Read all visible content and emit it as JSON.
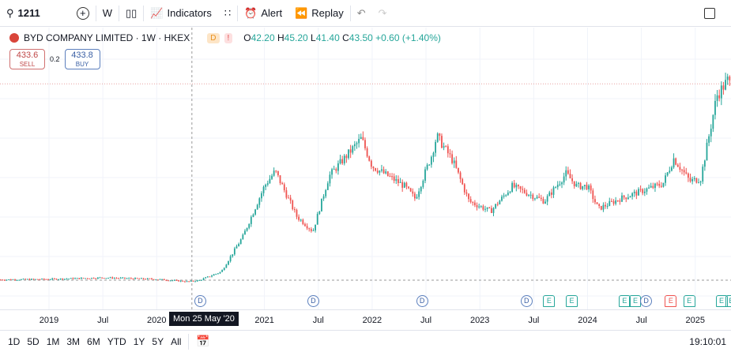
{
  "toolbar": {
    "symbol": "1211",
    "interval": "W",
    "indicators": "Indicators",
    "alert": "Alert",
    "replay": "Replay"
  },
  "legend": {
    "title": "BYD COMPANY LIMITED · 1W · HKEX",
    "badge_d": "D",
    "badge_warn": "!",
    "o_label": "O",
    "o": "42.20",
    "h_label": "H",
    "h": "45.20",
    "l_label": "L",
    "l": "41.40",
    "c_label": "C",
    "c": "43.50",
    "change": "+0.60 (+1.40%)"
  },
  "trade": {
    "sell_price": "433.6",
    "sell_label": "SELL",
    "spread": "0.2",
    "buy_price": "433.8",
    "buy_label": "BUY"
  },
  "crosshair_label": "Mon 25 May '20",
  "ranges": [
    "1D",
    "5D",
    "1M",
    "3M",
    "6M",
    "YTD",
    "1Y",
    "5Y",
    "All"
  ],
  "clock": "19:10:01",
  "colors": {
    "up": "#26a69a",
    "down": "#ef5350"
  },
  "chart_data": {
    "type": "candlestick",
    "x_ticks": [
      {
        "label": "2019",
        "t": 2019.0
      },
      {
        "label": "Jul",
        "t": 2019.5
      },
      {
        "label": "2020",
        "t": 2020.0
      },
      {
        "label": "2021",
        "t": 2021.0
      },
      {
        "label": "Jul",
        "t": 2021.5
      },
      {
        "label": "2022",
        "t": 2022.0
      },
      {
        "label": "Jul",
        "t": 2022.5
      },
      {
        "label": "2023",
        "t": 2023.0
      },
      {
        "label": "Jul",
        "t": 2023.5
      },
      {
        "label": "2024",
        "t": 2024.0
      },
      {
        "label": "Jul",
        "t": 2024.5
      },
      {
        "label": "2025",
        "t": 2025.0
      }
    ],
    "price_path": [
      [
        2018.55,
        44
      ],
      [
        2019.0,
        45
      ],
      [
        2019.5,
        48
      ],
      [
        2020.0,
        45
      ],
      [
        2020.3,
        40
      ],
      [
        2020.4,
        43
      ],
      [
        2020.6,
        60
      ],
      [
        2020.8,
        130
      ],
      [
        2021.0,
        230
      ],
      [
        2021.1,
        260
      ],
      [
        2021.3,
        170
      ],
      [
        2021.45,
        140
      ],
      [
        2021.6,
        250
      ],
      [
        2021.8,
        300
      ],
      [
        2021.9,
        325
      ],
      [
        2022.0,
        270
      ],
      [
        2022.3,
        230
      ],
      [
        2022.4,
        205
      ],
      [
        2022.55,
        290
      ],
      [
        2022.6,
        330
      ],
      [
        2022.75,
        280
      ],
      [
        2022.9,
        200
      ],
      [
        2023.1,
        180
      ],
      [
        2023.3,
        230
      ],
      [
        2023.6,
        200
      ],
      [
        2023.8,
        255
      ],
      [
        2023.9,
        230
      ],
      [
        2024.0,
        230
      ],
      [
        2024.1,
        185
      ],
      [
        2024.3,
        205
      ],
      [
        2024.5,
        220
      ],
      [
        2024.7,
        235
      ],
      [
        2024.8,
        285
      ],
      [
        2024.95,
        240
      ],
      [
        2025.05,
        245
      ],
      [
        2025.2,
        410
      ],
      [
        2025.3,
        440
      ],
      [
        2025.35,
        425
      ]
    ],
    "last_price": 433.6,
    "events": [
      {
        "type": "D",
        "t": 2020.4
      },
      {
        "type": "D",
        "t": 2021.45
      },
      {
        "type": "D",
        "t": 2022.46
      },
      {
        "type": "D",
        "t": 2023.43
      },
      {
        "type": "E",
        "t": 2023.64
      },
      {
        "type": "E",
        "t": 2023.85
      },
      {
        "type": "E",
        "t": 2024.34
      },
      {
        "type": "E",
        "t": 2024.44
      },
      {
        "type": "D",
        "t": 2024.54
      },
      {
        "type": "Eneg",
        "t": 2024.77
      },
      {
        "type": "E",
        "t": 2024.94
      },
      {
        "type": "E",
        "t": 2025.24
      },
      {
        "type": "E",
        "t": 2025.33
      }
    ]
  }
}
